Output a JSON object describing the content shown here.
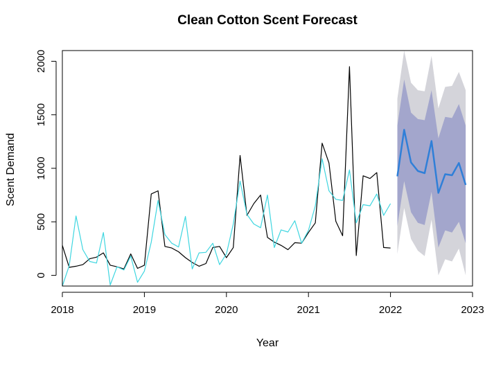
{
  "chart_data": {
    "type": "line",
    "title": "Clean Cotton Scent Forecast",
    "xlabel": "Year",
    "ylabel": "Scent Demand",
    "xlim": [
      2018,
      2023
    ],
    "ylim": [
      -100,
      2100
    ],
    "x_ticks": [
      2018,
      2019,
      2020,
      2021,
      2022,
      2023
    ],
    "y_ticks": [
      0,
      500,
      1000,
      1500,
      2000
    ],
    "grid": false,
    "legend": "none",
    "colors": {
      "actual": "#000000",
      "fitted": "#3ed6e0",
      "forecast": "#2f7fd8",
      "band80": "#a3a6cc",
      "band95": "#d4d4da"
    },
    "series": [
      {
        "role": "actual",
        "x_start": 2018.0,
        "x_step": 0.08333,
        "values": [
          280,
          75,
          85,
          100,
          155,
          170,
          210,
          95,
          80,
          60,
          200,
          65,
          95,
          760,
          790,
          270,
          255,
          220,
          165,
          120,
          85,
          110,
          260,
          270,
          165,
          260,
          1120,
          560,
          670,
          750,
          355,
          310,
          280,
          240,
          305,
          300,
          400,
          490,
          1235,
          1050,
          505,
          370,
          1950,
          185,
          930,
          905,
          960,
          260,
          255
        ]
      },
      {
        "role": "fitted",
        "x_start": 2018.0,
        "x_step": 0.08333,
        "values": [
          -100,
          90,
          555,
          240,
          130,
          115,
          400,
          -90,
          80,
          50,
          180,
          -65,
          40,
          310,
          700,
          380,
          300,
          265,
          550,
          60,
          210,
          215,
          300,
          100,
          200,
          480,
          880,
          570,
          480,
          445,
          750,
          260,
          425,
          405,
          510,
          300,
          420,
          650,
          1090,
          790,
          710,
          700,
          985,
          490,
          660,
          650,
          760,
          560,
          670
        ]
      },
      {
        "role": "forecast",
        "x_start": 2022.0833,
        "x_step": 0.08333,
        "values": [
          925,
          1360,
          1055,
          975,
          955,
          1255,
          770,
          945,
          935,
          1050,
          845
        ],
        "lower80": [
          460,
          880,
          590,
          490,
          470,
          780,
          260,
          420,
          400,
          500,
          300
        ],
        "upper80": [
          1400,
          1830,
          1520,
          1460,
          1450,
          1730,
          1280,
          1480,
          1470,
          1600,
          1400
        ],
        "lower95": [
          200,
          630,
          340,
          230,
          180,
          520,
          0,
          150,
          130,
          250,
          0
        ],
        "upper95": [
          1650,
          2100,
          1800,
          1730,
          1720,
          2050,
          1560,
          1760,
          1770,
          1900,
          1730
        ]
      }
    ]
  }
}
